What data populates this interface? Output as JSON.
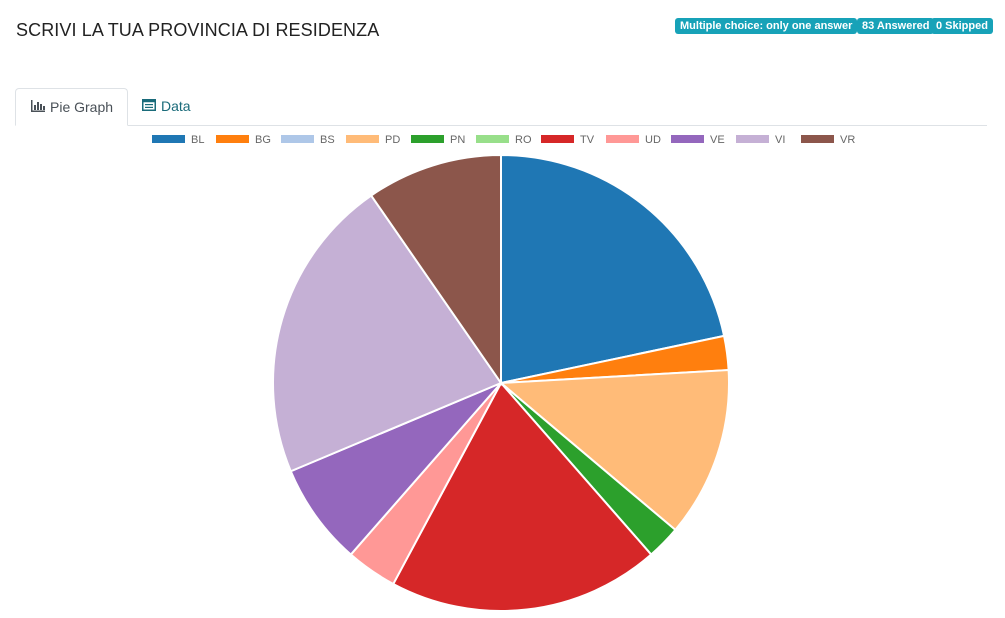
{
  "question": {
    "title": "SCRIVI LA TUA PROVINCIA DI RESIDENZA",
    "type_badge": "Multiple choice: only one answer",
    "answered_badge": "83 Answered",
    "skipped_badge": "0 Skipped"
  },
  "tabs": [
    {
      "label": "Pie Graph",
      "icon": "bar-chart-icon",
      "active": true
    },
    {
      "label": "Data",
      "icon": "table-icon",
      "active": false
    }
  ],
  "colors": {
    "badge": "#17a2b8",
    "tab_link": "#1a6b7a"
  },
  "chart_data": {
    "type": "pie",
    "categories": [
      "BL",
      "BG",
      "BS",
      "PD",
      "PN",
      "RO",
      "TV",
      "UD",
      "VE",
      "VI",
      "VR"
    ],
    "values": [
      18,
      2,
      0,
      10,
      2,
      0,
      16,
      3,
      6,
      18,
      8
    ],
    "colors": [
      "#1f77b4",
      "#ff7f0e",
      "#aec7e8",
      "#ffbb78",
      "#2ca02c",
      "#98df8a",
      "#d62728",
      "#ff9896",
      "#9467bd",
      "#c5b0d5",
      "#8c564b"
    ],
    "legend_position": "top",
    "title": ""
  }
}
